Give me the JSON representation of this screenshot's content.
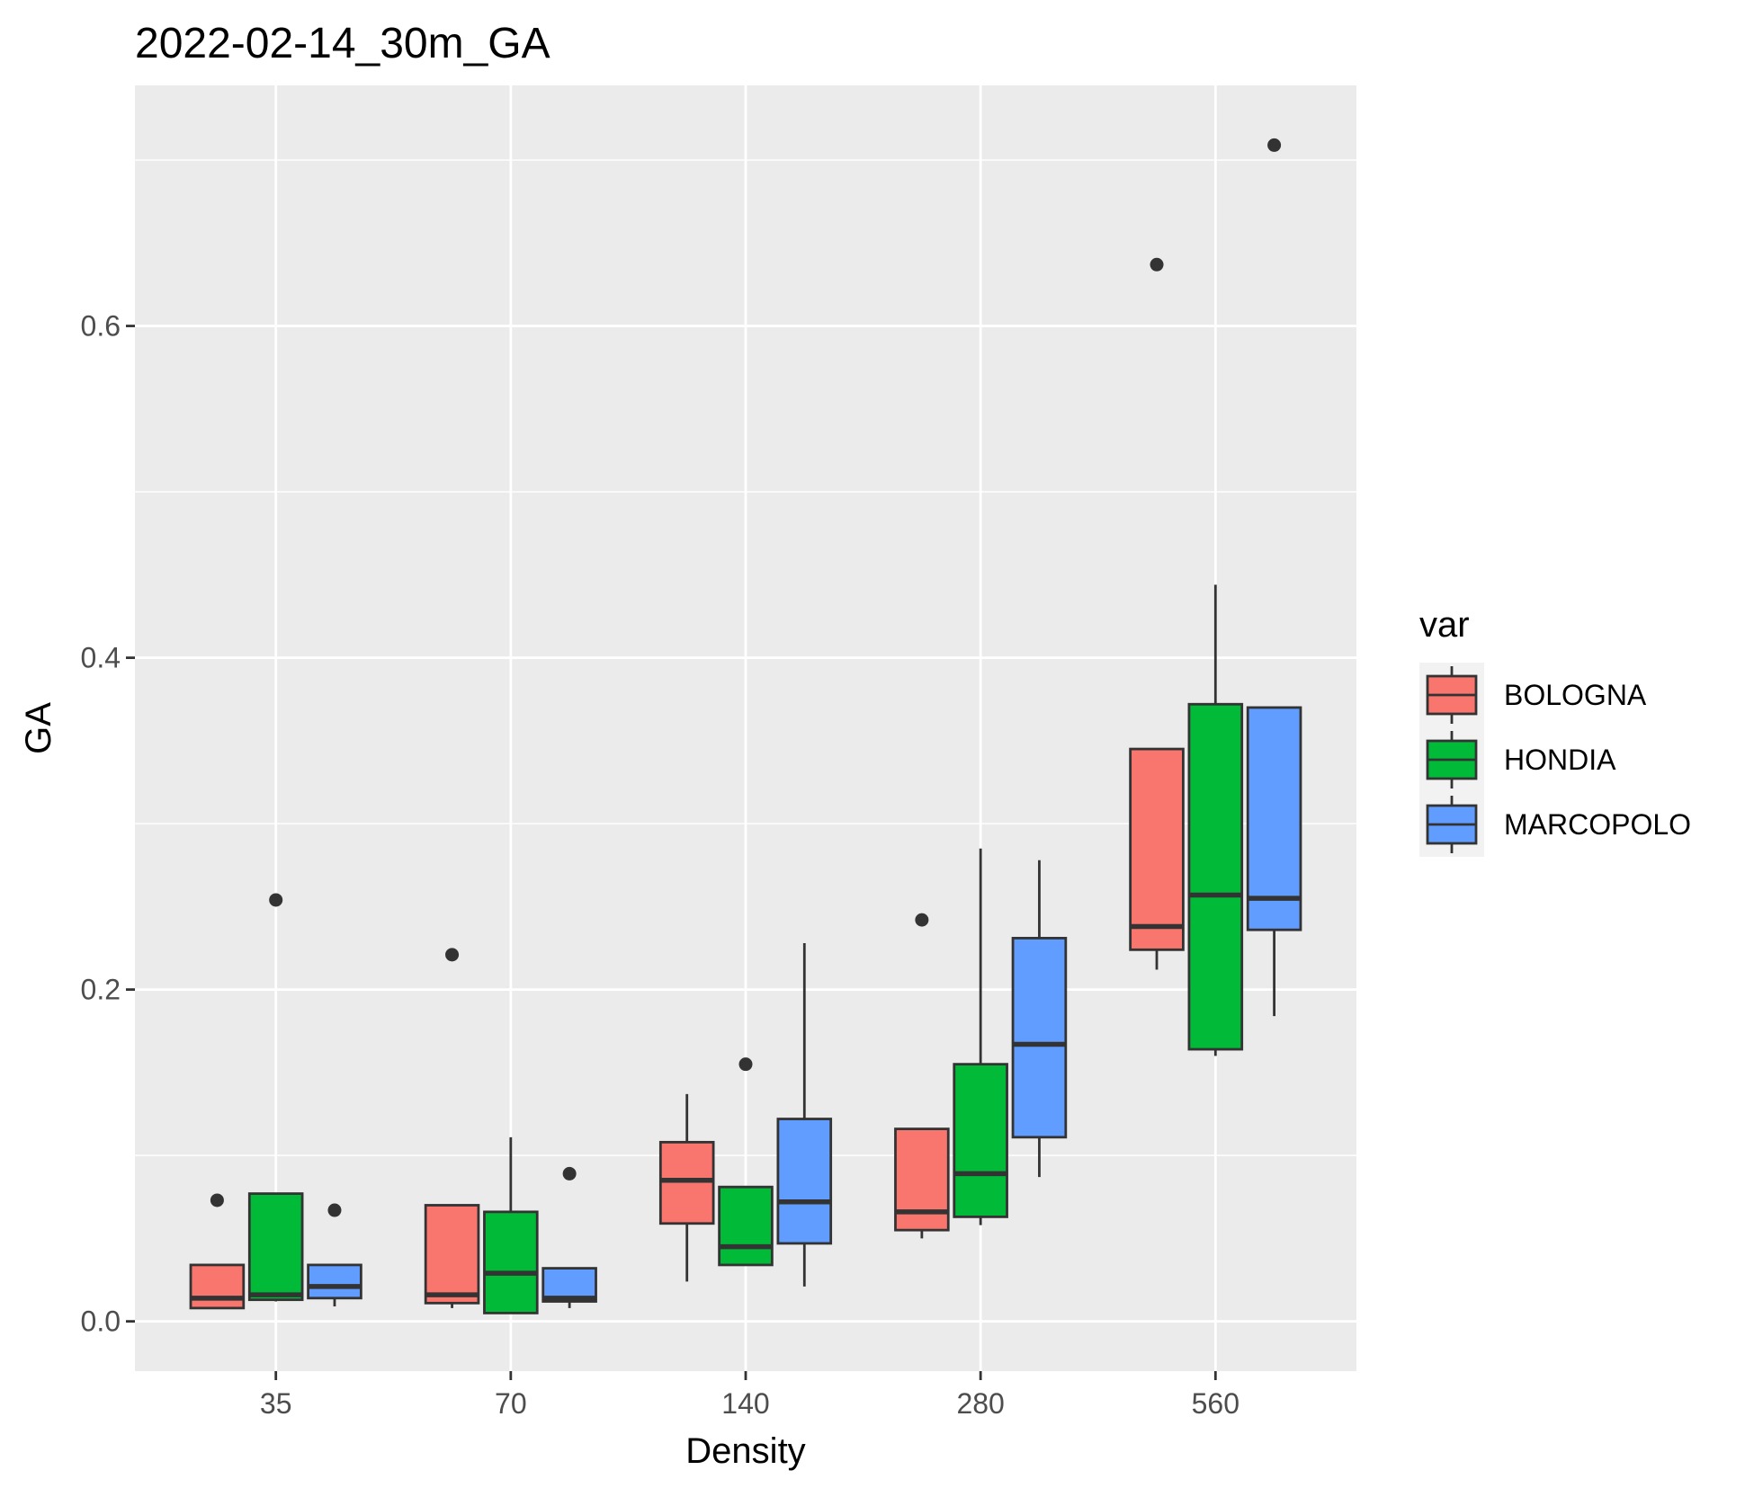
{
  "chart_data": {
    "type": "boxplot",
    "title": "2022-02-14_30m_GA",
    "xlabel": "Density",
    "ylabel": "GA",
    "categories": [
      "35",
      "70",
      "140",
      "280",
      "560"
    ],
    "ylim": [
      -0.03,
      0.745
    ],
    "yticks": [
      0.0,
      0.2,
      0.4,
      0.6
    ],
    "ytick_labels": [
      "0.0",
      "0.2",
      "0.4",
      "0.6"
    ],
    "grid": true,
    "legend": {
      "title": "var",
      "position": "right"
    },
    "series": [
      {
        "name": "BOLOGNA",
        "color": "#F8766D",
        "boxes": [
          {
            "min": 0.008,
            "q1": 0.008,
            "median": 0.014,
            "q3": 0.034,
            "max": 0.034,
            "outliers": [
              0.073
            ]
          },
          {
            "min": 0.008,
            "q1": 0.011,
            "median": 0.016,
            "q3": 0.07,
            "max": 0.07,
            "outliers": [
              0.221
            ]
          },
          {
            "min": 0.024,
            "q1": 0.059,
            "median": 0.085,
            "q3": 0.108,
            "max": 0.137,
            "outliers": []
          },
          {
            "min": 0.05,
            "q1": 0.055,
            "median": 0.066,
            "q3": 0.116,
            "max": 0.116,
            "outliers": [
              0.242
            ]
          },
          {
            "min": 0.212,
            "q1": 0.224,
            "median": 0.238,
            "q3": 0.345,
            "max": 0.345,
            "outliers": [
              0.637
            ]
          }
        ]
      },
      {
        "name": "HONDIA",
        "color": "#00BA38",
        "boxes": [
          {
            "min": 0.012,
            "q1": 0.013,
            "median": 0.016,
            "q3": 0.077,
            "max": 0.077,
            "outliers": [
              0.254
            ]
          },
          {
            "min": 0.005,
            "q1": 0.005,
            "median": 0.029,
            "q3": 0.066,
            "max": 0.111,
            "outliers": []
          },
          {
            "min": 0.034,
            "q1": 0.034,
            "median": 0.045,
            "q3": 0.081,
            "max": 0.081,
            "outliers": [
              0.155
            ]
          },
          {
            "min": 0.058,
            "q1": 0.063,
            "median": 0.089,
            "q3": 0.155,
            "max": 0.285,
            "outliers": []
          },
          {
            "min": 0.16,
            "q1": 0.164,
            "median": 0.257,
            "q3": 0.372,
            "max": 0.444,
            "outliers": []
          }
        ]
      },
      {
        "name": "MARCOPOLO",
        "color": "#619CFF",
        "boxes": [
          {
            "min": 0.009,
            "q1": 0.014,
            "median": 0.021,
            "q3": 0.034,
            "max": 0.034,
            "outliers": [
              0.067
            ]
          },
          {
            "min": 0.008,
            "q1": 0.012,
            "median": 0.014,
            "q3": 0.032,
            "max": 0.032,
            "outliers": [
              0.089
            ]
          },
          {
            "min": 0.021,
            "q1": 0.047,
            "median": 0.072,
            "q3": 0.122,
            "max": 0.228,
            "outliers": []
          },
          {
            "min": 0.087,
            "q1": 0.111,
            "median": 0.167,
            "q3": 0.231,
            "max": 0.278,
            "outliers": []
          },
          {
            "min": 0.184,
            "q1": 0.236,
            "median": 0.255,
            "q3": 0.37,
            "max": 0.37,
            "outliers": [
              0.709
            ]
          }
        ]
      }
    ]
  }
}
